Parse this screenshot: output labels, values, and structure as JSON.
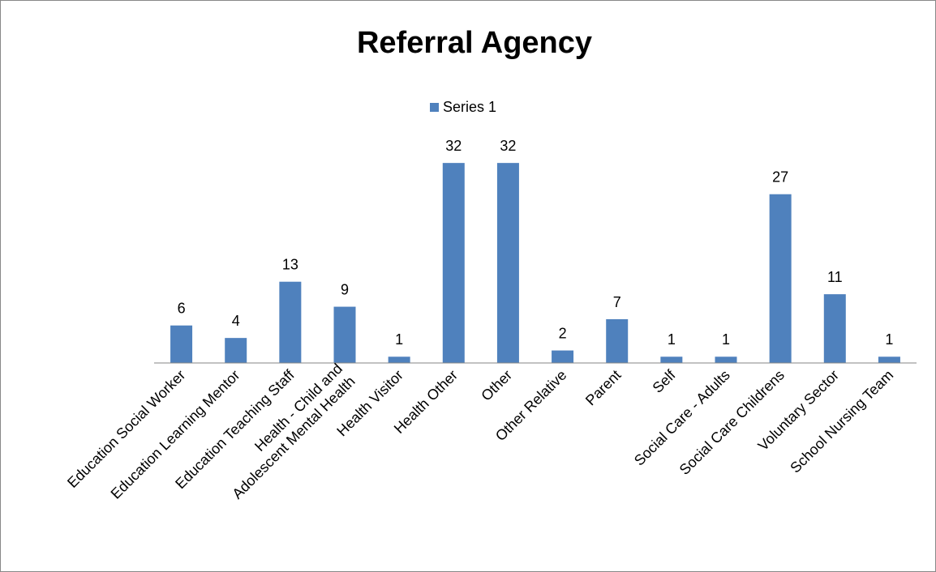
{
  "chart_data": {
    "type": "bar",
    "title": "Referral Agency",
    "categories": [
      "Education Social Worker",
      "Education Learning Mentor",
      "Education Teaching Staff",
      "Health - Child and Adolescent Mental Health",
      "Health Visitor",
      "Health Other",
      "Other",
      "Other Relative",
      "Parent",
      "Self",
      "Social Care - Adults",
      "Social Care Childrens",
      "Voluntary Sector",
      "School Nursing Team"
    ],
    "series": [
      {
        "name": "Series 1",
        "color": "#4f81bd",
        "values": [
          6,
          4,
          13,
          9,
          1,
          32,
          32,
          2,
          7,
          1,
          1,
          27,
          11,
          1
        ]
      }
    ],
    "ylim": [
      0,
      35
    ],
    "legend": "top",
    "data_labels": true
  }
}
